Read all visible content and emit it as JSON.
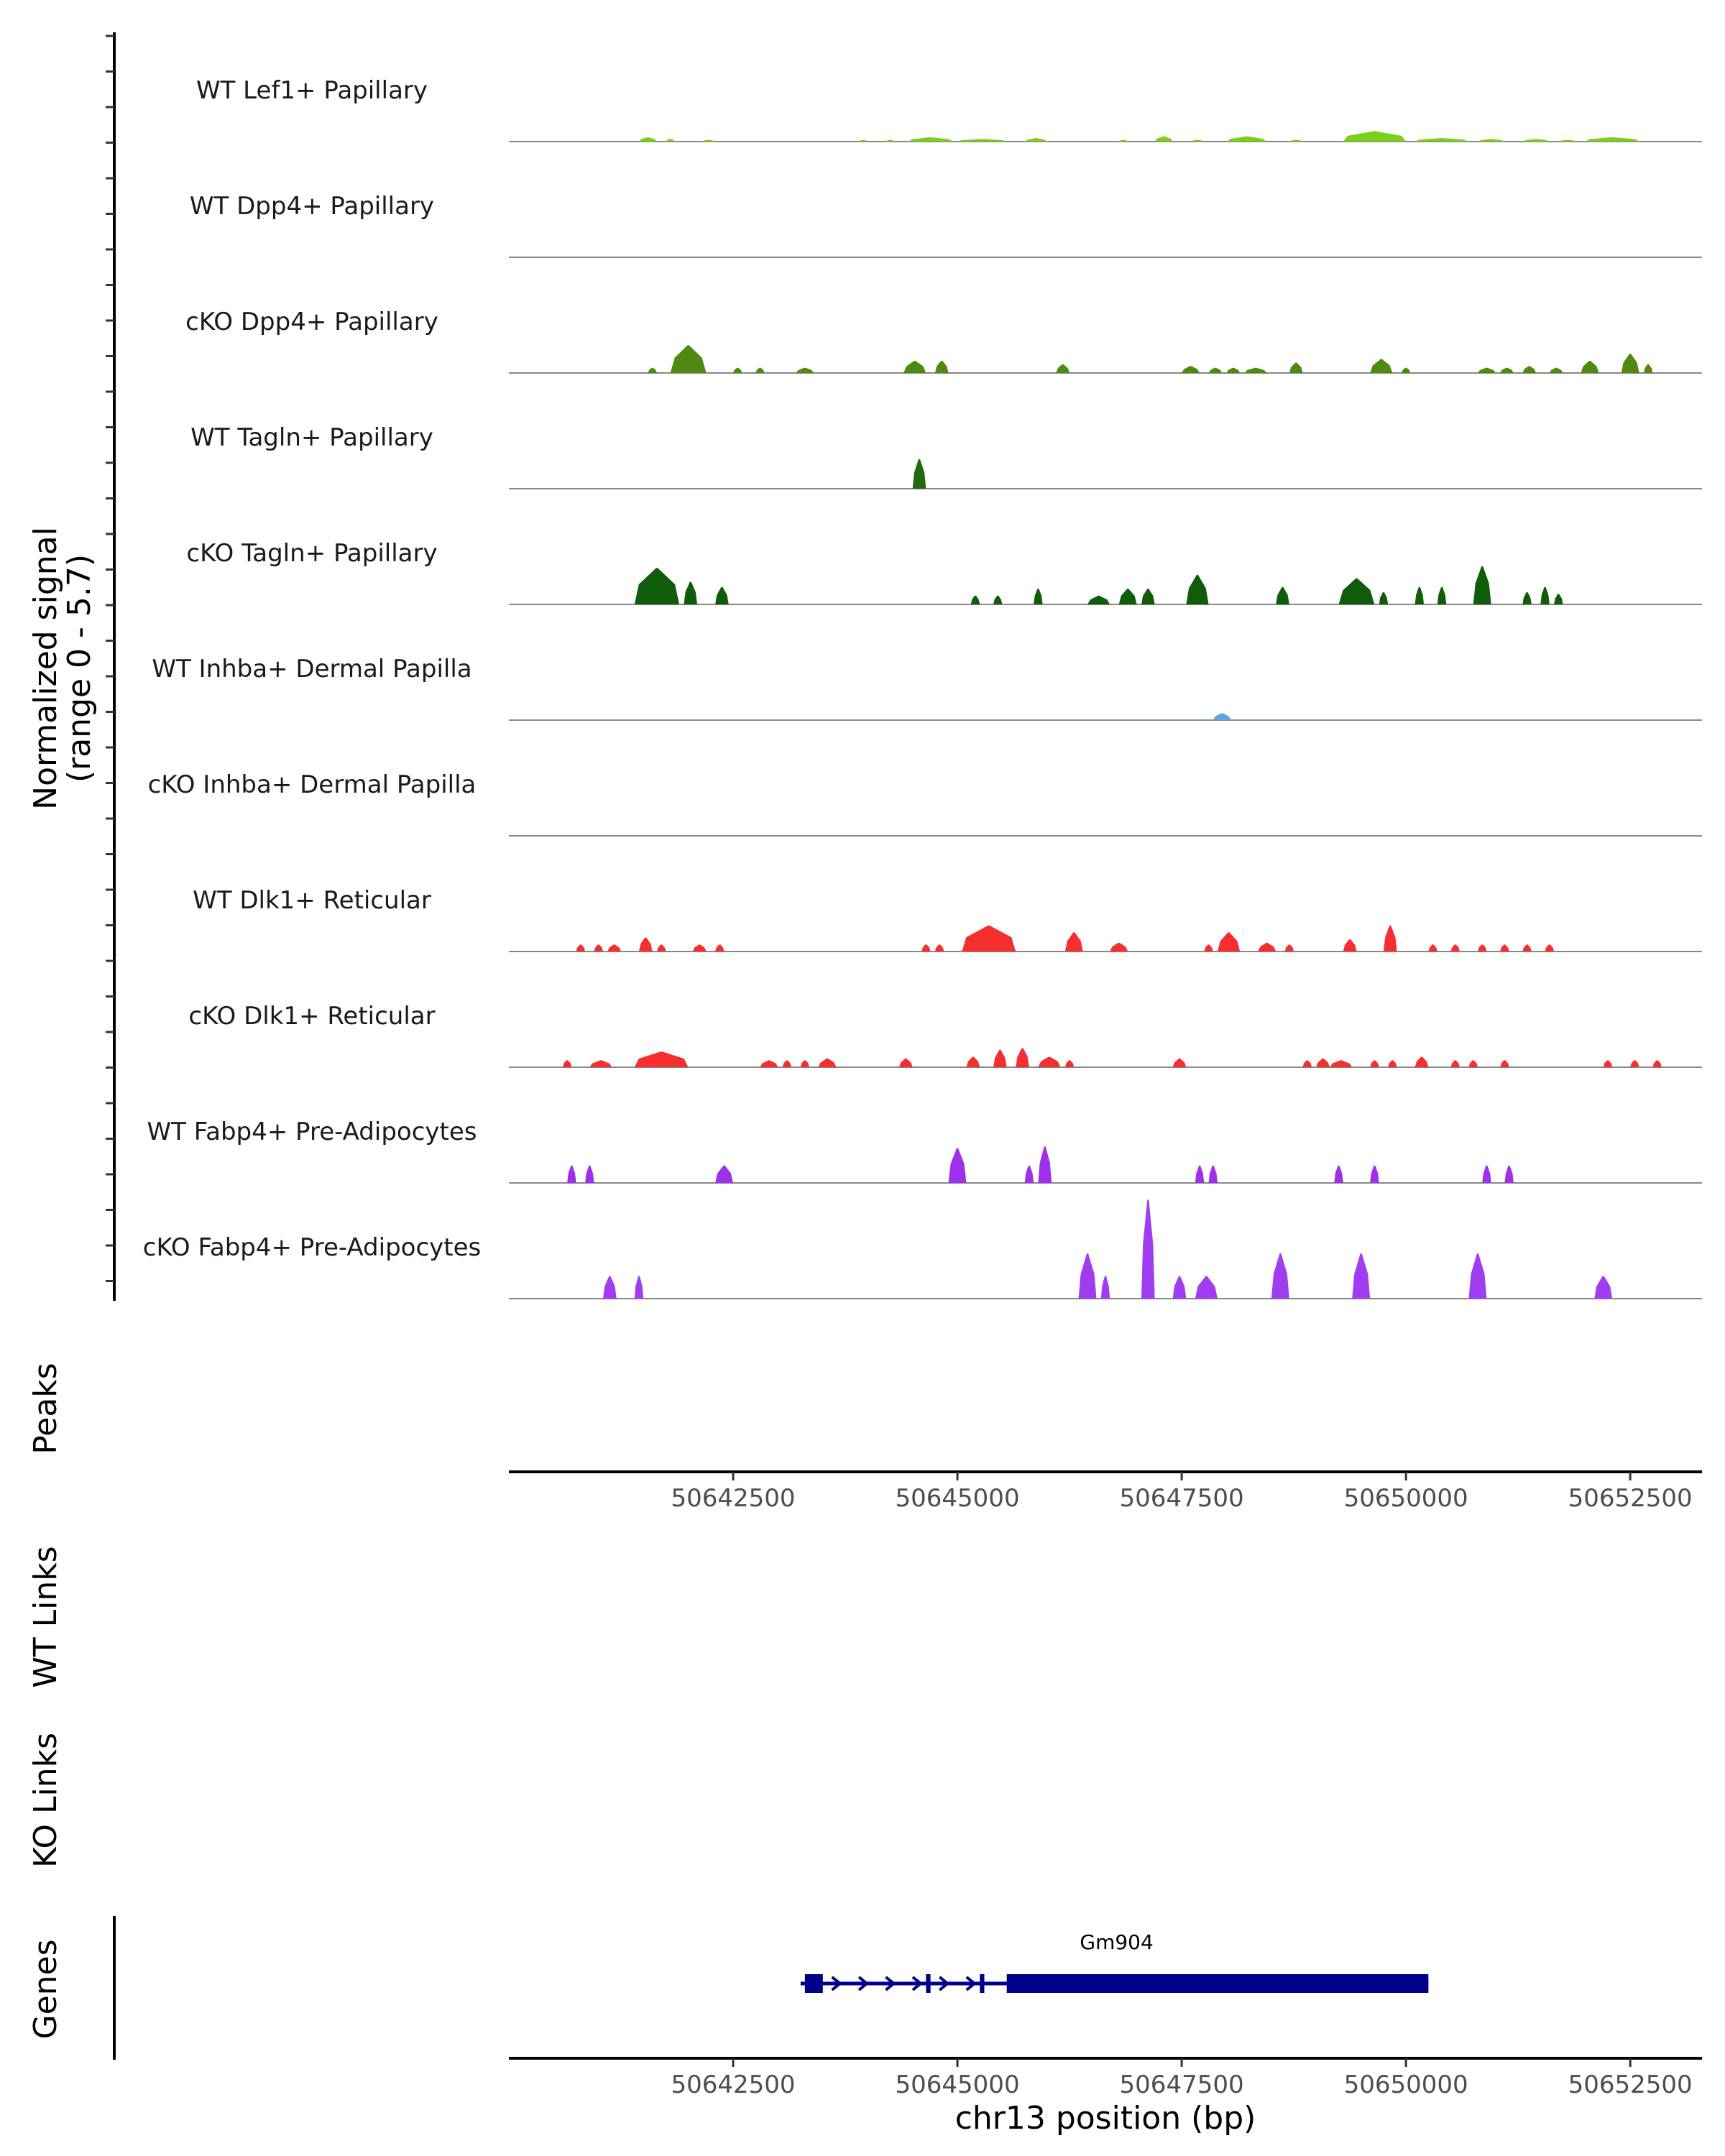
{
  "chart_data": {
    "type": "area",
    "title": "",
    "region": "chr13",
    "xlabel": "chr13 position (bp)",
    "xlim": [
      50640000,
      50653300
    ],
    "x_ticks": [
      50642500,
      50645000,
      50647500,
      50650000,
      50652500
    ],
    "x_tick_labels": [
      "50642500",
      "50645000",
      "50647500",
      "50650000",
      "50652500"
    ],
    "coverage_axis_label": "Normalized signal",
    "coverage_axis_sublabel": "(range 0 - 5.7)",
    "ylim": [
      0,
      5.7
    ],
    "panel_titles": {
      "peaks": "Peaks",
      "wt_links": "WT Links",
      "ko_links": "KO Links",
      "genes": "Genes"
    },
    "series": [
      {
        "name": "WT Lef1+ Papillary",
        "color": "#7CCD1C",
        "peaks": [
          [
            50641450,
            50641650,
            0.25
          ],
          [
            50641750,
            50641850,
            0.15
          ],
          [
            50642150,
            50642300,
            0.1
          ],
          [
            50643900,
            50644000,
            0.1
          ],
          [
            50644200,
            50644300,
            0.1
          ],
          [
            50644450,
            50644950,
            0.25
          ],
          [
            50645000,
            50645550,
            0.15
          ],
          [
            50645750,
            50646000,
            0.2
          ],
          [
            50646800,
            50646900,
            0.1
          ],
          [
            50647200,
            50647400,
            0.3
          ],
          [
            50647600,
            50647750,
            0.1
          ],
          [
            50648000,
            50648450,
            0.3
          ],
          [
            50648700,
            50648850,
            0.1
          ],
          [
            50649300,
            50650000,
            0.6
          ],
          [
            50650100,
            50650700,
            0.2
          ],
          [
            50650800,
            50651100,
            0.15
          ],
          [
            50651300,
            50651600,
            0.15
          ],
          [
            50651700,
            50651900,
            0.1
          ],
          [
            50652000,
            50652600,
            0.25
          ]
        ]
      },
      {
        "name": "WT Dpp4+ Papillary",
        "color": "#5E9E14",
        "peaks": []
      },
      {
        "name": "cKO Dpp4+ Papillary",
        "color": "#4F8A10",
        "peaks": [
          [
            50641550,
            50641650,
            0.3
          ],
          [
            50641800,
            50642200,
            1.6
          ],
          [
            50642500,
            50642600,
            0.3
          ],
          [
            50642750,
            50642850,
            0.3
          ],
          [
            50643200,
            50643400,
            0.3
          ],
          [
            50644400,
            50644650,
            0.7
          ],
          [
            50644750,
            50644900,
            0.7
          ],
          [
            50646100,
            50646250,
            0.5
          ],
          [
            50647500,
            50647700,
            0.4
          ],
          [
            50647800,
            50647950,
            0.3
          ],
          [
            50648000,
            50648150,
            0.3
          ],
          [
            50648200,
            50648450,
            0.3
          ],
          [
            50648700,
            50648850,
            0.6
          ],
          [
            50649600,
            50649850,
            0.8
          ],
          [
            50649950,
            50650050,
            0.3
          ],
          [
            50650800,
            50651000,
            0.3
          ],
          [
            50651050,
            50651200,
            0.3
          ],
          [
            50651300,
            50651450,
            0.4
          ],
          [
            50651600,
            50651750,
            0.3
          ],
          [
            50651950,
            50652150,
            0.7
          ],
          [
            50652400,
            50652600,
            1.1
          ],
          [
            50652650,
            50652750,
            0.5
          ]
        ]
      },
      {
        "name": "WT Tagln+ Papillary",
        "color": "#1F6B0E",
        "peaks": [
          [
            50644500,
            50644650,
            1.7
          ]
        ]
      },
      {
        "name": "cKO Tagln+ Papillary",
        "color": "#0F5D0A",
        "peaks": [
          [
            50641400,
            50641900,
            2.1
          ],
          [
            50641950,
            50642100,
            1.3
          ],
          [
            50642300,
            50642450,
            1.0
          ],
          [
            50645150,
            50645250,
            0.5
          ],
          [
            50645400,
            50645500,
            0.5
          ],
          [
            50645850,
            50645950,
            0.9
          ],
          [
            50646450,
            50646700,
            0.5
          ],
          [
            50646800,
            50647000,
            0.9
          ],
          [
            50647050,
            50647200,
            0.9
          ],
          [
            50647550,
            50647800,
            1.7
          ],
          [
            50648550,
            50648700,
            1.0
          ],
          [
            50649250,
            50649650,
            1.5
          ],
          [
            50649700,
            50649800,
            0.7
          ],
          [
            50650100,
            50650200,
            1.0
          ],
          [
            50650350,
            50650450,
            1.0
          ],
          [
            50650750,
            50650950,
            2.2
          ],
          [
            50651300,
            50651400,
            0.7
          ],
          [
            50651500,
            50651600,
            1.0
          ],
          [
            50651650,
            50651750,
            0.6
          ]
        ]
      },
      {
        "name": "WT Inhba+ Dermal Papilla",
        "color": "#5BA8E0",
        "peaks": [
          [
            50647850,
            50648050,
            0.4
          ]
        ]
      },
      {
        "name": "cKO Inhba+ Dermal Papilla",
        "color": "#5BA8E0",
        "peaks": []
      },
      {
        "name": "WT Dlk1+ Reticular",
        "color": "#F52F2F",
        "peaks": [
          [
            50640750,
            50640850,
            0.4
          ],
          [
            50640950,
            50641050,
            0.4
          ],
          [
            50641100,
            50641250,
            0.4
          ],
          [
            50641450,
            50641600,
            0.8
          ],
          [
            50641650,
            50641750,
            0.4
          ],
          [
            50642050,
            50642200,
            0.4
          ],
          [
            50642300,
            50642400,
            0.4
          ],
          [
            50644600,
            50644700,
            0.4
          ],
          [
            50644750,
            50644850,
            0.4
          ],
          [
            50645050,
            50645650,
            1.5
          ],
          [
            50646200,
            50646400,
            1.1
          ],
          [
            50646700,
            50646900,
            0.5
          ],
          [
            50647750,
            50647850,
            0.4
          ],
          [
            50647900,
            50648150,
            1.1
          ],
          [
            50648350,
            50648550,
            0.5
          ],
          [
            50648650,
            50648750,
            0.4
          ],
          [
            50649300,
            50649450,
            0.7
          ],
          [
            50649750,
            50649900,
            1.5
          ],
          [
            50650250,
            50650350,
            0.4
          ],
          [
            50650500,
            50650600,
            0.4
          ],
          [
            50650800,
            50650900,
            0.4
          ],
          [
            50651050,
            50651150,
            0.4
          ],
          [
            50651300,
            50651400,
            0.4
          ],
          [
            50651550,
            50651650,
            0.4
          ]
        ]
      },
      {
        "name": "cKO Dlk1+ Reticular",
        "color": "#F52F2F",
        "peaks": [
          [
            50640600,
            50640700,
            0.4
          ],
          [
            50640900,
            50641150,
            0.4
          ],
          [
            50641400,
            50642000,
            0.9
          ],
          [
            50642800,
            50643000,
            0.4
          ],
          [
            50643050,
            50643150,
            0.4
          ],
          [
            50643250,
            50643350,
            0.4
          ],
          [
            50643450,
            50643650,
            0.5
          ],
          [
            50644350,
            50644500,
            0.5
          ],
          [
            50645100,
            50645250,
            0.6
          ],
          [
            50645400,
            50645550,
            1.0
          ],
          [
            50645650,
            50645800,
            1.1
          ],
          [
            50645900,
            50646150,
            0.6
          ],
          [
            50646200,
            50646300,
            0.4
          ],
          [
            50647400,
            50647550,
            0.5
          ],
          [
            50648850,
            50648950,
            0.4
          ],
          [
            50649000,
            50649150,
            0.5
          ],
          [
            50649150,
            50649400,
            0.4
          ],
          [
            50649600,
            50649700,
            0.4
          ],
          [
            50649800,
            50649900,
            0.4
          ],
          [
            50650100,
            50650250,
            0.6
          ],
          [
            50650500,
            50650600,
            0.4
          ],
          [
            50650700,
            50650800,
            0.4
          ],
          [
            50651050,
            50651150,
            0.4
          ],
          [
            50652200,
            50652300,
            0.4
          ],
          [
            50652500,
            50652600,
            0.4
          ],
          [
            50652750,
            50652850,
            0.4
          ]
        ]
      },
      {
        "name": "WT Fabp4+ Pre-Adipocytes",
        "color": "#9E2FEA",
        "peaks": [
          [
            50640650,
            50640750,
            1.0
          ],
          [
            50640850,
            50640950,
            1.0
          ],
          [
            50642300,
            50642500,
            1.0
          ],
          [
            50644900,
            50645100,
            2.0
          ],
          [
            50645750,
            50645850,
            1.0
          ],
          [
            50645900,
            50646050,
            2.1
          ],
          [
            50647650,
            50647750,
            1.0
          ],
          [
            50647800,
            50647900,
            1.0
          ],
          [
            50649200,
            50649300,
            1.0
          ],
          [
            50649600,
            50649700,
            1.0
          ],
          [
            50650850,
            50650950,
            1.0
          ],
          [
            50651100,
            50651200,
            1.0
          ]
        ]
      },
      {
        "name": "cKO Fabp4+ Pre-Adipocytes",
        "color": "#A13DF0",
        "peaks": [
          [
            50641050,
            50641200,
            1.3
          ],
          [
            50641400,
            50641500,
            1.3
          ],
          [
            50646350,
            50646550,
            2.6
          ],
          [
            50646600,
            50646700,
            1.3
          ],
          [
            50647050,
            50647200,
            5.7
          ],
          [
            50647400,
            50647550,
            1.3
          ],
          [
            50647650,
            50647900,
            1.3
          ],
          [
            50648500,
            50648700,
            2.6
          ],
          [
            50649400,
            50649600,
            2.6
          ],
          [
            50650700,
            50650900,
            2.6
          ],
          [
            50652100,
            50652300,
            1.3
          ]
        ]
      }
    ],
    "genes": [
      {
        "name": "Gm904",
        "start": 50643300,
        "end": 50650250,
        "strand": "+",
        "exons": [
          [
            50643300,
            50643500
          ],
          [
            50644650,
            50644700
          ],
          [
            50645250,
            50645300
          ],
          [
            50645550,
            50650250
          ]
        ]
      }
    ]
  }
}
